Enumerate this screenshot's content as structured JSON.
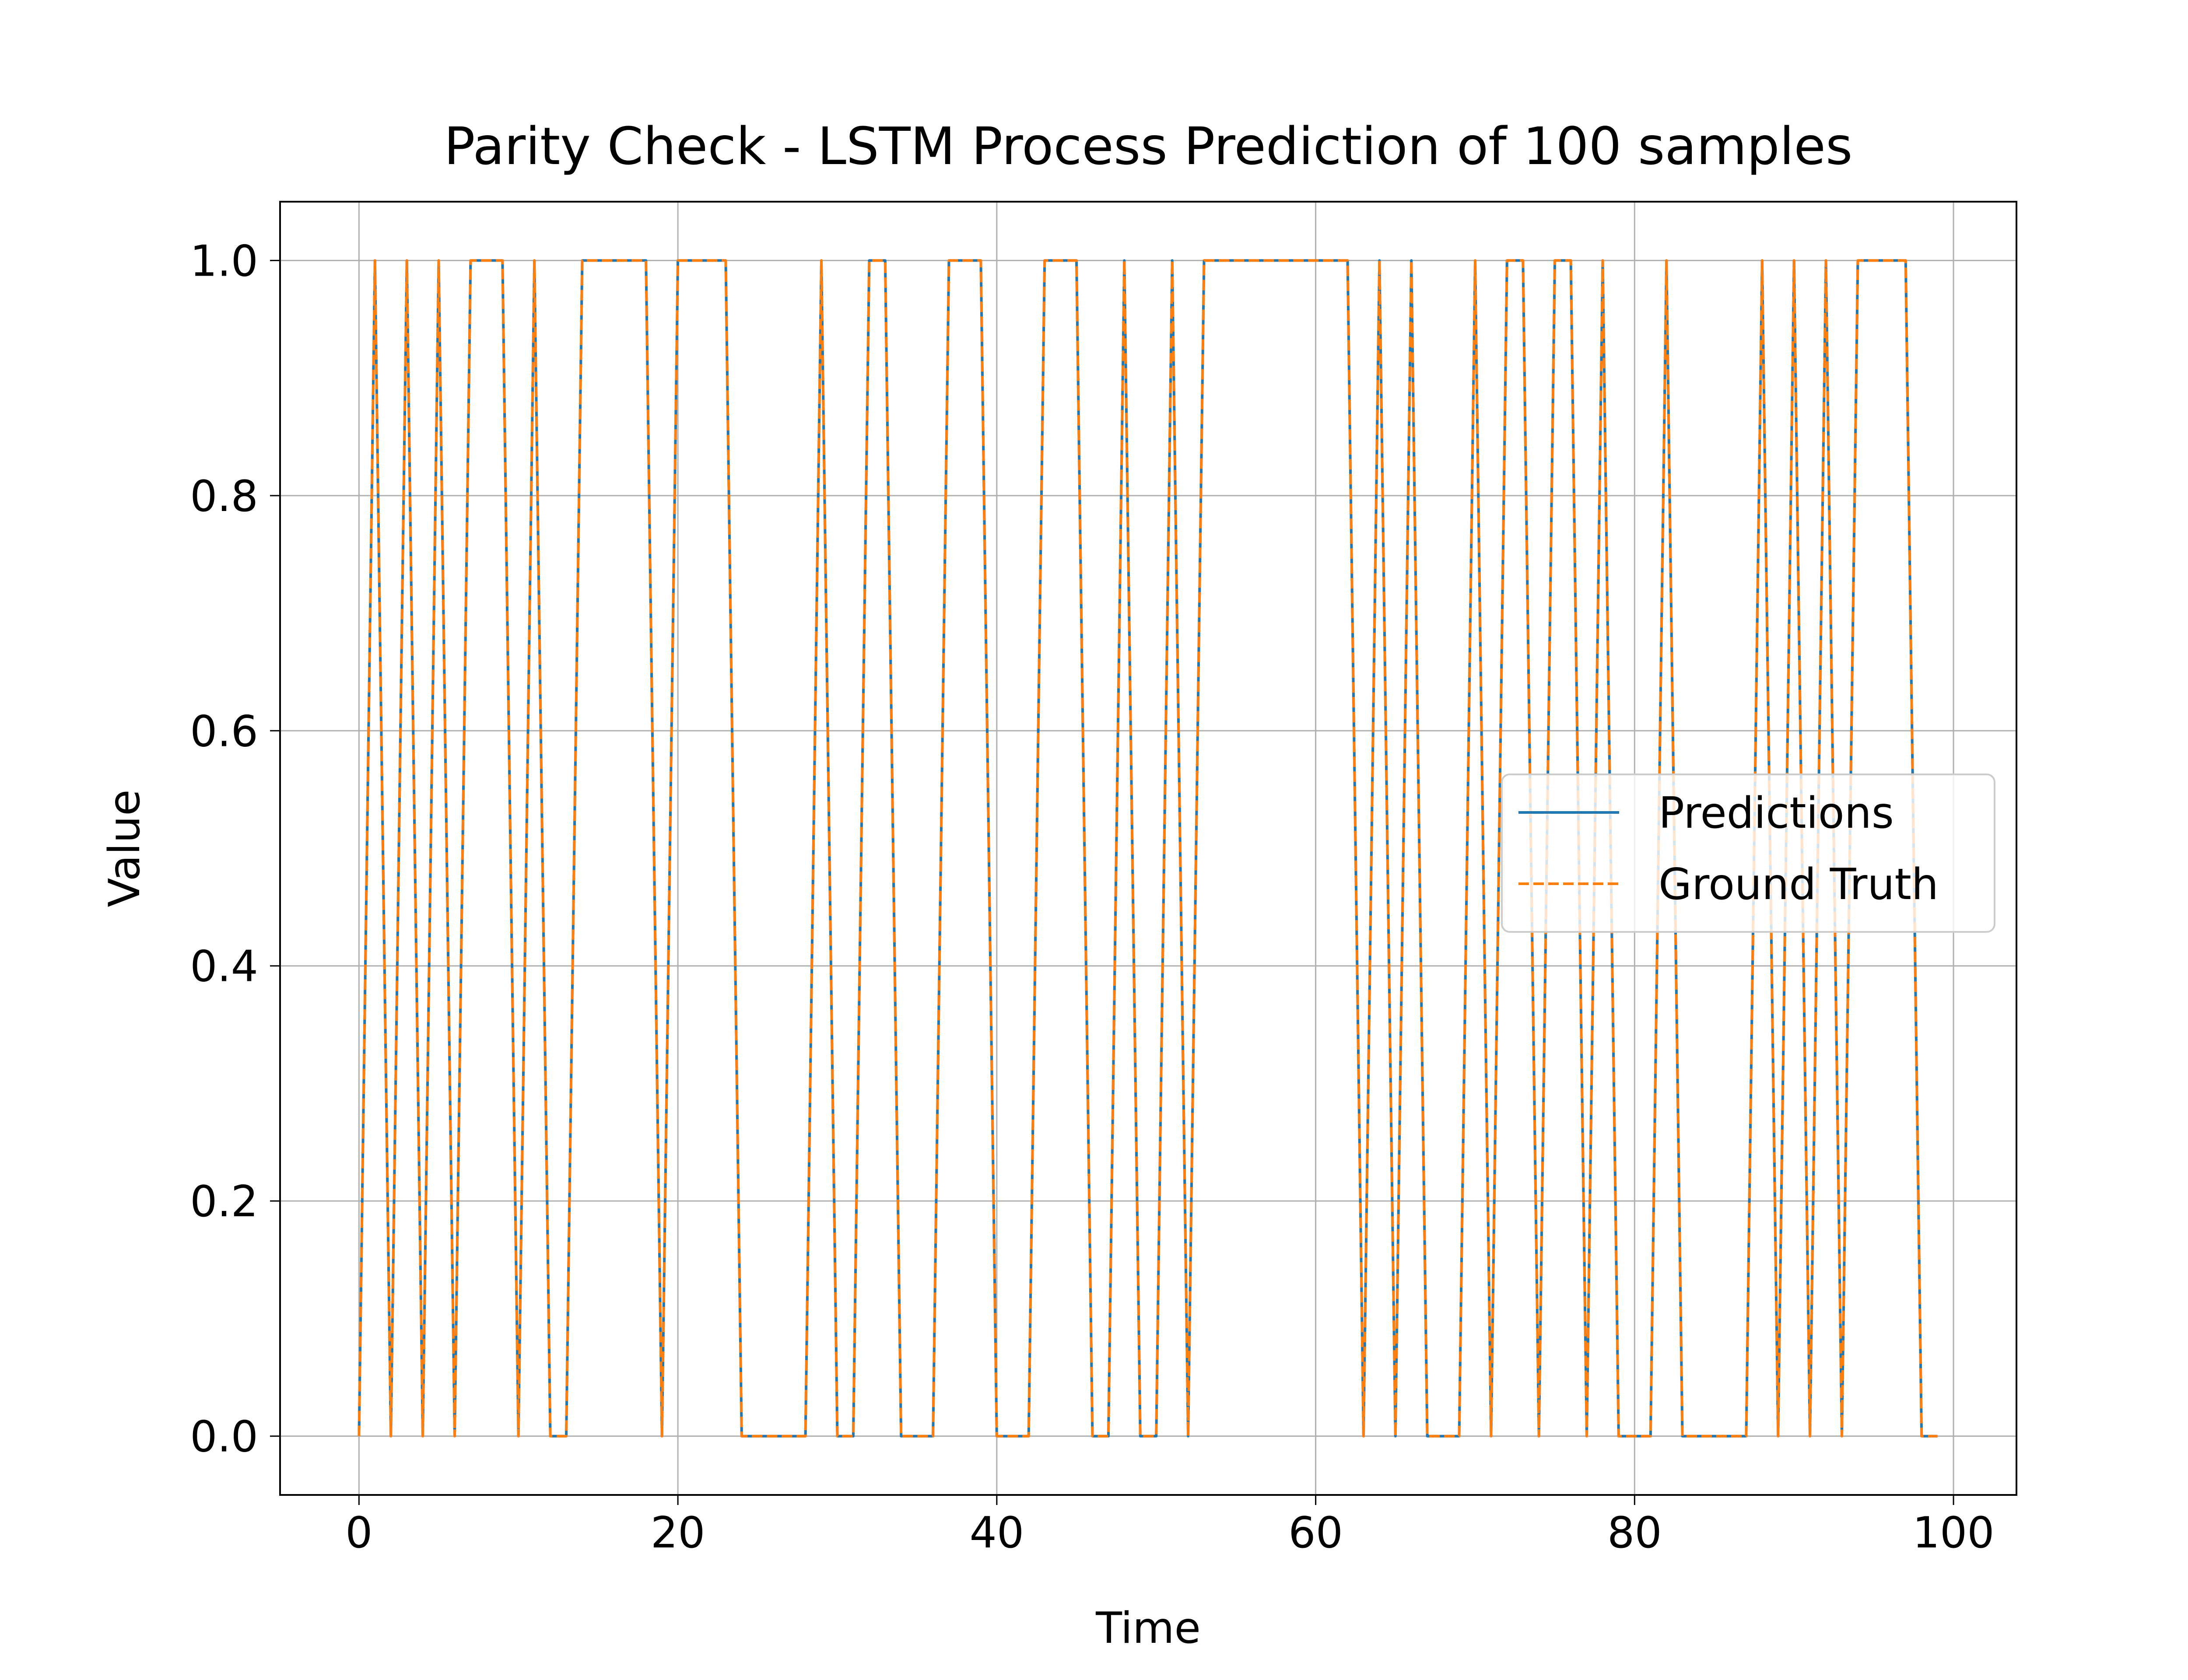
{
  "chart_data": {
    "type": "line",
    "title": "Parity Check - LSTM Process Prediction of 100 samples",
    "xlabel": "Time",
    "ylabel": "Value",
    "xlim": [
      -4.95,
      103.95
    ],
    "ylim": [
      -0.05,
      1.05
    ],
    "xticks": [
      0,
      20,
      40,
      60,
      80,
      100
    ],
    "xtick_labels": [
      "0",
      "20",
      "40",
      "60",
      "80",
      "100"
    ],
    "yticks": [
      0.0,
      0.2,
      0.4,
      0.6,
      0.8,
      1.0
    ],
    "ytick_labels": [
      "0.0",
      "0.2",
      "0.4",
      "0.6",
      "0.8",
      "1.0"
    ],
    "grid": true,
    "legend_position": "center-right",
    "x": [
      0,
      1,
      2,
      3,
      4,
      5,
      6,
      7,
      8,
      9,
      10,
      11,
      12,
      13,
      14,
      15,
      16,
      17,
      18,
      19,
      20,
      21,
      22,
      23,
      24,
      25,
      26,
      27,
      28,
      29,
      30,
      31,
      32,
      33,
      34,
      35,
      36,
      37,
      38,
      39,
      40,
      41,
      42,
      43,
      44,
      45,
      46,
      47,
      48,
      49,
      50,
      51,
      52,
      53,
      54,
      55,
      56,
      57,
      58,
      59,
      60,
      61,
      62,
      63,
      64,
      65,
      66,
      67,
      68,
      69,
      70,
      71,
      72,
      73,
      74,
      75,
      76,
      77,
      78,
      79,
      80,
      81,
      82,
      83,
      84,
      85,
      86,
      87,
      88,
      89,
      90,
      91,
      92,
      93,
      94,
      95,
      96,
      97,
      98,
      99
    ],
    "series": [
      {
        "name": "Predictions",
        "color": "#1f77b4",
        "style": "solid",
        "values": [
          0,
          1,
          0,
          1,
          0,
          1,
          0,
          1,
          1,
          1,
          0,
          1,
          0,
          0,
          1,
          1,
          1,
          1,
          1,
          0,
          1,
          1,
          1,
          1,
          0,
          0,
          0,
          0,
          0,
          1,
          0,
          0,
          1,
          1,
          0,
          0,
          0,
          1,
          1,
          1,
          0,
          0,
          0,
          1,
          1,
          1,
          0,
          0,
          1,
          0,
          0,
          1,
          0,
          1,
          1,
          1,
          1,
          1,
          1,
          1,
          1,
          1,
          1,
          0,
          1,
          0,
          1,
          0,
          0,
          0,
          1,
          0,
          1,
          1,
          0,
          1,
          1,
          0,
          1,
          0,
          0,
          0,
          1,
          0,
          0,
          0,
          0,
          0,
          1,
          0,
          1,
          0,
          1,
          0,
          1,
          1,
          1,
          1,
          0,
          0
        ]
      },
      {
        "name": "Ground Truth",
        "color": "#ff7f0e",
        "style": "dashed",
        "values": [
          0,
          1,
          0,
          1,
          0,
          1,
          0,
          1,
          1,
          1,
          0,
          1,
          0,
          0,
          1,
          1,
          1,
          1,
          1,
          0,
          1,
          1,
          1,
          1,
          0,
          0,
          0,
          0,
          0,
          1,
          0,
          0,
          1,
          1,
          0,
          0,
          0,
          1,
          1,
          1,
          0,
          0,
          0,
          1,
          1,
          1,
          0,
          0,
          1,
          0,
          0,
          1,
          0,
          1,
          1,
          1,
          1,
          1,
          1,
          1,
          1,
          1,
          1,
          0,
          1,
          0,
          1,
          0,
          0,
          0,
          1,
          0,
          1,
          1,
          0,
          1,
          1,
          0,
          1,
          0,
          0,
          0,
          1,
          0,
          0,
          0,
          0,
          0,
          1,
          0,
          1,
          0,
          1,
          0,
          1,
          1,
          1,
          1,
          0,
          0
        ]
      }
    ]
  }
}
